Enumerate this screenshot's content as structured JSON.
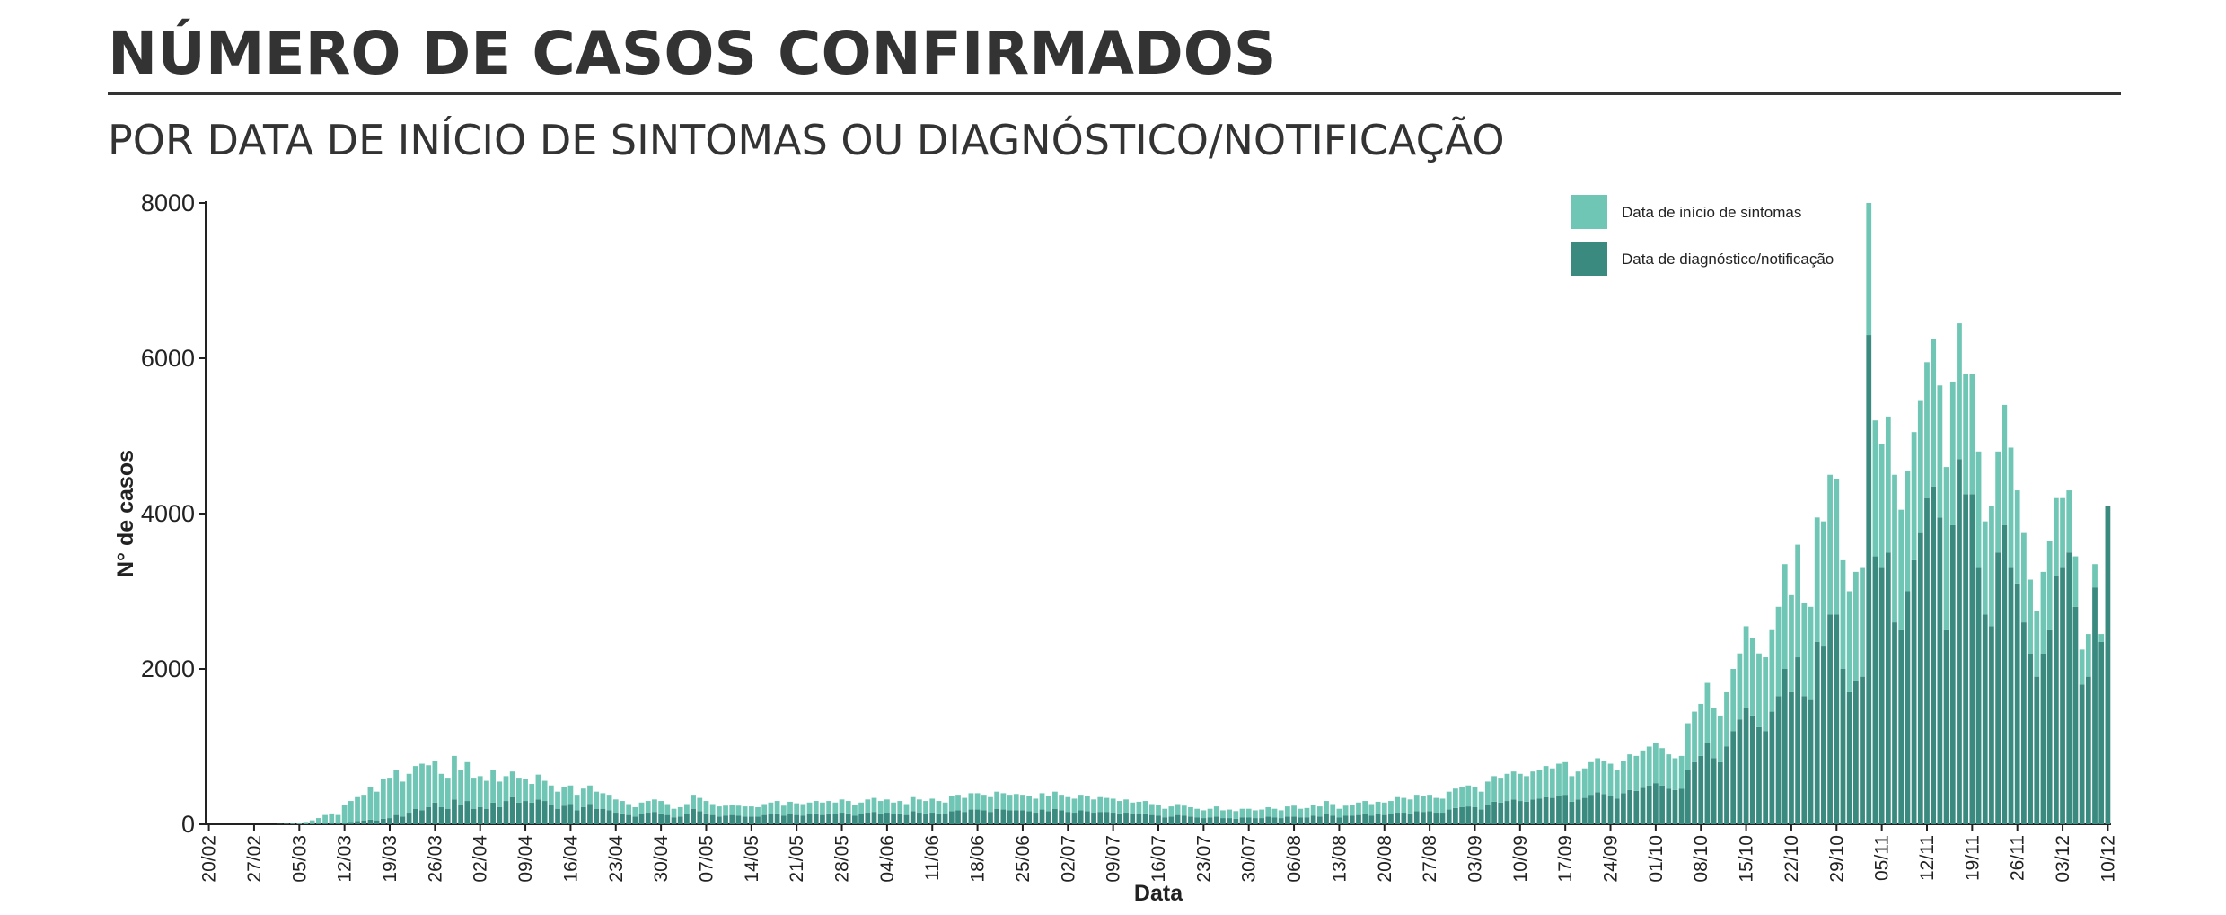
{
  "chart_data": {
    "type": "stacked_bar",
    "title": "NÚMERO DE CASOS CONFIRMADOS",
    "subtitle": "POR DATA DE INÍCIO DE SINTOMAS OU DIAGNÓSTICO/NOTIFICAÇÃO",
    "x_label": "Data",
    "y_label": "N° de casos",
    "ylim": [
      0,
      8000
    ],
    "yticks": [
      0,
      2000,
      4000,
      6000,
      8000
    ],
    "legend": "top-right",
    "categories": [
      "20/02",
      null,
      null,
      null,
      null,
      null,
      null,
      "27/02",
      null,
      null,
      null,
      null,
      null,
      null,
      "05/03",
      null,
      null,
      null,
      null,
      null,
      null,
      "12/03",
      null,
      null,
      null,
      null,
      null,
      null,
      "19/03",
      null,
      null,
      null,
      null,
      null,
      null,
      "26/03",
      null,
      null,
      null,
      null,
      null,
      null,
      "02/04",
      null,
      null,
      null,
      null,
      null,
      null,
      "09/04",
      null,
      null,
      null,
      null,
      null,
      null,
      "16/04",
      null,
      null,
      null,
      null,
      null,
      null,
      "23/04",
      null,
      null,
      null,
      null,
      null,
      null,
      "30/04",
      null,
      null,
      null,
      null,
      null,
      null,
      "07/05",
      null,
      null,
      null,
      null,
      null,
      null,
      "14/05",
      null,
      null,
      null,
      null,
      null,
      null,
      "21/05",
      null,
      null,
      null,
      null,
      null,
      null,
      "28/05",
      null,
      null,
      null,
      null,
      null,
      null,
      "04/06",
      null,
      null,
      null,
      null,
      null,
      null,
      "11/06",
      null,
      null,
      null,
      null,
      null,
      null,
      "18/06",
      null,
      null,
      null,
      null,
      null,
      null,
      "25/06",
      null,
      null,
      null,
      null,
      null,
      null,
      "02/07",
      null,
      null,
      null,
      null,
      null,
      null,
      "09/07",
      null,
      null,
      null,
      null,
      null,
      null,
      "16/07",
      null,
      null,
      null,
      null,
      null,
      null,
      "23/07",
      null,
      null,
      null,
      null,
      null,
      null,
      "30/07",
      null,
      null,
      null,
      null,
      null,
      null,
      "06/08",
      null,
      null,
      null,
      null,
      null,
      null,
      "13/08",
      null,
      null,
      null,
      null,
      null,
      null,
      "20/08",
      null,
      null,
      null,
      null,
      null,
      null,
      "27/08",
      null,
      null,
      null,
      null,
      null,
      null,
      "03/09",
      null,
      null,
      null,
      null,
      null,
      null,
      "10/09",
      null,
      null,
      null,
      null,
      null,
      null,
      "17/09",
      null,
      null,
      null,
      null,
      null,
      null,
      "24/09",
      null,
      null,
      null,
      null,
      null,
      null,
      "01/10",
      null,
      null,
      null,
      null,
      null,
      null,
      "08/10",
      null,
      null,
      null,
      null,
      null,
      null,
      "15/10",
      null,
      null,
      null,
      null,
      null,
      null,
      "22/10",
      null,
      null,
      null,
      null,
      null,
      null,
      "29/10",
      null,
      null,
      null,
      null,
      null,
      null,
      "05/11",
      null,
      null,
      null,
      null,
      null,
      null,
      "12/11",
      null,
      null,
      null,
      null,
      null,
      null,
      "19/11",
      null,
      null,
      null,
      null,
      null,
      null,
      "26/11",
      null,
      null,
      null,
      null,
      null,
      null,
      "03/12",
      null,
      null,
      null,
      null,
      null,
      null,
      "10/12"
    ],
    "series": [
      {
        "name": "Data de diagnóstico/notificação",
        "color": "#3a8a80",
        "values": [
          0,
          0,
          0,
          0,
          0,
          0,
          0,
          0,
          0,
          0,
          0,
          0,
          0,
          0,
          2,
          3,
          5,
          8,
          10,
          10,
          10,
          20,
          30,
          40,
          50,
          60,
          50,
          70,
          80,
          120,
          100,
          150,
          200,
          180,
          220,
          280,
          220,
          200,
          320,
          250,
          300,
          200,
          220,
          200,
          280,
          220,
          300,
          350,
          280,
          300,
          280,
          320,
          300,
          250,
          200,
          240,
          260,
          180,
          220,
          260,
          200,
          200,
          180,
          150,
          140,
          120,
          100,
          130,
          150,
          160,
          140,
          120,
          90,
          100,
          130,
          200,
          170,
          140,
          120,
          100,
          110,
          120,
          110,
          100,
          100,
          100,
          120,
          130,
          140,
          110,
          130,
          120,
          110,
          130,
          140,
          120,
          140,
          130,
          150,
          140,
          110,
          130,
          150,
          160,
          140,
          150,
          130,
          140,
          120,
          170,
          150,
          140,
          150,
          140,
          130,
          170,
          180,
          160,
          190,
          190,
          180,
          160,
          200,
          190,
          180,
          180,
          180,
          170,
          150,
          190,
          170,
          200,
          180,
          160,
          150,
          180,
          170,
          150,
          160,
          160,
          150,
          140,
          150,
          130,
          130,
          140,
          120,
          110,
          90,
          100,
          120,
          110,
          100,
          90,
          80,
          90,
          100,
          80,
          80,
          70,
          90,
          90,
          80,
          80,
          100,
          90,
          80,
          100,
          100,
          90,
          90,
          110,
          100,
          130,
          110,
          90,
          110,
          110,
          120,
          130,
          110,
          130,
          120,
          130,
          150,
          150,
          140,
          170,
          160,
          170,
          150,
          150,
          190,
          210,
          220,
          230,
          220,
          190,
          250,
          290,
          280,
          300,
          320,
          300,
          290,
          320,
          330,
          350,
          340,
          370,
          380,
          290,
          320,
          340,
          380,
          410,
          390,
          370,
          330,
          400,
          440,
          430,
          470,
          500,
          530,
          500,
          460,
          440,
          460,
          700,
          800,
          880,
          1050,
          850,
          800,
          1000,
          1200,
          1350,
          1500,
          1400,
          1250,
          1200,
          1450,
          1650,
          2000,
          1700,
          2150,
          1650,
          1600,
          2350,
          2300,
          2700,
          2700,
          2000,
          1700,
          1850,
          1900,
          6300,
          3450,
          3300,
          3500,
          2600,
          2500,
          3000,
          3400,
          3750,
          4200,
          4350,
          3950,
          2500,
          3850,
          4700,
          4250,
          4250,
          3300,
          2700,
          2550,
          3500,
          3850,
          3300,
          3100,
          2600,
          2200,
          1900,
          2200,
          2500,
          3200,
          3300,
          3500,
          2800,
          1800,
          1900,
          3050,
          2350,
          4100
        ]
      },
      {
        "name": "Data de início de sintomas",
        "color": "#6fc6b4",
        "values": [
          0,
          0,
          0,
          0,
          0,
          0,
          0,
          0,
          0,
          0,
          0,
          2,
          5,
          8,
          18,
          27,
          45,
          72,
          110,
          130,
          110,
          230,
          270,
          310,
          330,
          420,
          370,
          510,
          520,
          580,
          450,
          500,
          550,
          600,
          540,
          540,
          430,
          400,
          560,
          450,
          500,
          400,
          400,
          360,
          420,
          330,
          320,
          330,
          320,
          280,
          240,
          320,
          260,
          250,
          220,
          240,
          240,
          200,
          240,
          240,
          220,
          200,
          200,
          170,
          160,
          140,
          120,
          150,
          150,
          160,
          160,
          140,
          110,
          120,
          130,
          180,
          170,
          160,
          140,
          130,
          130,
          130,
          130,
          130,
          130,
          120,
          140,
          150,
          160,
          130,
          160,
          150,
          150,
          150,
          160,
          160,
          160,
          150,
          170,
          160,
          140,
          150,
          170,
          180,
          160,
          170,
          150,
          160,
          140,
          180,
          170,
          160,
          180,
          160,
          150,
          190,
          200,
          180,
          210,
          210,
          200,
          190,
          220,
          210,
          200,
          210,
          200,
          190,
          180,
          210,
          190,
          220,
          200,
          190,
          180,
          200,
          190,
          170,
          190,
          180,
          180,
          160,
          170,
          150,
          160,
          160,
          140,
          140,
          110,
          130,
          140,
          130,
          120,
          110,
          100,
          110,
          130,
          100,
          110,
          100,
          110,
          110,
          100,
          110,
          120,
          110,
          100,
          130,
          140,
          110,
          120,
          140,
          130,
          170,
          150,
          110,
          130,
          140,
          160,
          170,
          150,
          160,
          160,
          170,
          200,
          190,
          180,
          210,
          200,
          210,
          190,
          180,
          230,
          250,
          260,
          270,
          260,
          230,
          300,
          330,
          320,
          350,
          360,
          350,
          330,
          360,
          370,
          400,
          380,
          410,
          420,
          330,
          360,
          380,
          420,
          440,
          430,
          410,
          370,
          420,
          460,
          450,
          480,
          500,
          520,
          480,
          440,
          410,
          420,
          600,
          650,
          670,
          770,
          650,
          600,
          700,
          800,
          850,
          1050,
          1000,
          950,
          950,
          1050,
          1150,
          1350,
          1250,
          1450,
          1200,
          1200,
          1600,
          1600,
          1800,
          1750,
          1400,
          1300,
          1400,
          1400,
          1700,
          1750,
          1600,
          1750,
          1900,
          1550,
          1550,
          1650,
          1700,
          1750,
          1900,
          1700,
          2100,
          1850,
          1750,
          1550,
          1550,
          1500,
          1200,
          1550,
          1300,
          1550,
          1550,
          1200,
          1150,
          950,
          850,
          1050,
          1150,
          1000,
          900,
          800,
          650,
          450,
          550,
          300,
          100,
          0
        ]
      }
    ]
  }
}
